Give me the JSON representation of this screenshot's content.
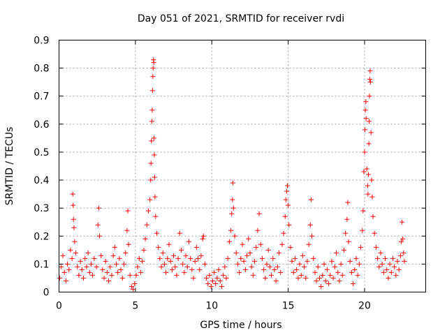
{
  "chart_data": {
    "type": "scatter",
    "title": "Day 051 of 2021, SRMTID for receiver rvdi",
    "xlabel": "GPS time / hours",
    "ylabel": "SRMTID / TECUs",
    "xlim": [
      0,
      24
    ],
    "ylim": [
      0,
      0.9
    ],
    "xticks": [
      0,
      5,
      10,
      15,
      20
    ],
    "xtick_labels": [
      "0",
      "5",
      "10",
      "15",
      "20"
    ],
    "yticks": [
      0,
      0.1,
      0.2,
      0.3,
      0.4,
      0.5,
      0.6,
      0.7,
      0.8,
      0.9
    ],
    "ytick_labels": [
      "0",
      "0.1",
      "0.2",
      "0.3",
      "0.4",
      "0.5",
      "0.6",
      "0.7",
      "0.8",
      "0.9"
    ],
    "grid": true,
    "marker": "+",
    "color": "#ff0000",
    "series": [
      {
        "name": "SRMTID",
        "points": [
          [
            0.05,
            0.05
          ],
          [
            0.15,
            0.09
          ],
          [
            0.25,
            0.13
          ],
          [
            0.35,
            0.07
          ],
          [
            0.45,
            0.04
          ],
          [
            0.55,
            0.1
          ],
          [
            0.65,
            0.08
          ],
          [
            0.75,
            0.15
          ],
          [
            0.85,
            0.12
          ],
          [
            0.9,
            0.35
          ],
          [
            0.92,
            0.31
          ],
          [
            0.95,
            0.26
          ],
          [
            0.98,
            0.23
          ],
          [
            1.02,
            0.18
          ],
          [
            1.1,
            0.14
          ],
          [
            1.2,
            0.09
          ],
          [
            1.3,
            0.06
          ],
          [
            1.4,
            0.11
          ],
          [
            1.5,
            0.08
          ],
          [
            1.6,
            0.05
          ],
          [
            1.7,
            0.12
          ],
          [
            1.8,
            0.09
          ],
          [
            1.9,
            0.14
          ],
          [
            2.0,
            0.07
          ],
          [
            2.1,
            0.1
          ],
          [
            2.2,
            0.06
          ],
          [
            2.3,
            0.12
          ],
          [
            2.45,
            0.09
          ],
          [
            2.55,
            0.24
          ],
          [
            2.6,
            0.3
          ],
          [
            2.65,
            0.2
          ],
          [
            2.75,
            0.13
          ],
          [
            2.85,
            0.08
          ],
          [
            2.95,
            0.05
          ],
          [
            3.05,
            0.11
          ],
          [
            3.15,
            0.07
          ],
          [
            3.25,
            0.04
          ],
          [
            3.35,
            0.09
          ],
          [
            3.45,
            0.06
          ],
          [
            3.55,
            0.13
          ],
          [
            3.65,
            0.16
          ],
          [
            3.75,
            0.1
          ],
          [
            3.85,
            0.07
          ],
          [
            3.95,
            0.12
          ],
          [
            4.05,
            0.08
          ],
          [
            4.15,
            0.05
          ],
          [
            4.25,
            0.1
          ],
          [
            4.35,
            0.14
          ],
          [
            4.45,
            0.22
          ],
          [
            4.5,
            0.29
          ],
          [
            4.55,
            0.17
          ],
          [
            4.65,
            0.06
          ],
          [
            4.75,
            0.02
          ],
          [
            4.85,
            0.01
          ],
          [
            4.95,
            0.03
          ],
          [
            5.05,
            0.06
          ],
          [
            5.15,
            0.09
          ],
          [
            5.25,
            0.12
          ],
          [
            5.35,
            0.07
          ],
          [
            5.45,
            0.11
          ],
          [
            5.55,
            0.15
          ],
          [
            5.65,
            0.19
          ],
          [
            5.75,
            0.24
          ],
          [
            5.85,
            0.29
          ],
          [
            5.95,
            0.33
          ],
          [
            6.0,
            0.4
          ],
          [
            6.02,
            0.46
          ],
          [
            6.05,
            0.54
          ],
          [
            6.08,
            0.61
          ],
          [
            6.1,
            0.65
          ],
          [
            6.12,
            0.72
          ],
          [
            6.14,
            0.77
          ],
          [
            6.16,
            0.8
          ],
          [
            6.18,
            0.83
          ],
          [
            6.2,
            0.82
          ],
          [
            6.22,
            0.55
          ],
          [
            6.24,
            0.49
          ],
          [
            6.26,
            0.41
          ],
          [
            6.28,
            0.34
          ],
          [
            6.32,
            0.27
          ],
          [
            6.4,
            0.21
          ],
          [
            6.5,
            0.16
          ],
          [
            6.6,
            0.12
          ],
          [
            6.7,
            0.09
          ],
          [
            6.8,
            0.14
          ],
          [
            6.9,
            0.1
          ],
          [
            7.0,
            0.07
          ],
          [
            7.1,
            0.12
          ],
          [
            7.2,
            0.17
          ],
          [
            7.3,
            0.11
          ],
          [
            7.4,
            0.08
          ],
          [
            7.5,
            0.13
          ],
          [
            7.6,
            0.09
          ],
          [
            7.7,
            0.06
          ],
          [
            7.8,
            0.12
          ],
          [
            7.9,
            0.21
          ],
          [
            8.0,
            0.15
          ],
          [
            8.1,
            0.1
          ],
          [
            8.2,
            0.07
          ],
          [
            8.3,
            0.13
          ],
          [
            8.4,
            0.09
          ],
          [
            8.5,
            0.18
          ],
          [
            8.6,
            0.12
          ],
          [
            8.7,
            0.08
          ],
          [
            8.8,
            0.05
          ],
          [
            8.9,
            0.11
          ],
          [
            9.0,
            0.16
          ],
          [
            9.1,
            0.12
          ],
          [
            9.2,
            0.08
          ],
          [
            9.3,
            0.13
          ],
          [
            9.4,
            0.19
          ],
          [
            9.45,
            0.2
          ],
          [
            9.55,
            0.1
          ],
          [
            9.65,
            0.05
          ],
          [
            9.75,
            0.03
          ],
          [
            9.85,
            0.06
          ],
          [
            9.95,
            0.02
          ],
          [
            10.05,
            0.04
          ],
          [
            10.15,
            0.07
          ],
          [
            10.25,
            0.03
          ],
          [
            10.35,
            0.05
          ],
          [
            10.45,
            0.08
          ],
          [
            10.55,
            0.04
          ],
          [
            10.65,
            0.02
          ],
          [
            10.75,
            0.06
          ],
          [
            10.85,
            0.09
          ],
          [
            10.95,
            0.05
          ],
          [
            11.05,
            0.12
          ],
          [
            11.15,
            0.18
          ],
          [
            11.25,
            0.22
          ],
          [
            11.3,
            0.28
          ],
          [
            11.35,
            0.33
          ],
          [
            11.38,
            0.39
          ],
          [
            11.42,
            0.3
          ],
          [
            11.5,
            0.2
          ],
          [
            11.6,
            0.14
          ],
          [
            11.7,
            0.1
          ],
          [
            11.8,
            0.07
          ],
          [
            11.9,
            0.12
          ],
          [
            12.0,
            0.17
          ],
          [
            12.1,
            0.11
          ],
          [
            12.2,
            0.08
          ],
          [
            12.3,
            0.13
          ],
          [
            12.4,
            0.19
          ],
          [
            12.5,
            0.14
          ],
          [
            12.6,
            0.09
          ],
          [
            12.7,
            0.06
          ],
          [
            12.8,
            0.11
          ],
          [
            12.9,
            0.16
          ],
          [
            13.0,
            0.22
          ],
          [
            13.1,
            0.28
          ],
          [
            13.2,
            0.17
          ],
          [
            13.3,
            0.12
          ],
          [
            13.4,
            0.08
          ],
          [
            13.5,
            0.05
          ],
          [
            13.6,
            0.1
          ],
          [
            13.7,
            0.15
          ],
          [
            13.8,
            0.09
          ],
          [
            13.9,
            0.06
          ],
          [
            14.0,
            0.12
          ],
          [
            14.1,
            0.08
          ],
          [
            14.2,
            0.04
          ],
          [
            14.3,
            0.09
          ],
          [
            14.4,
            0.14
          ],
          [
            14.5,
            0.07
          ],
          [
            14.6,
            0.17
          ],
          [
            14.7,
            0.21
          ],
          [
            14.8,
            0.27
          ],
          [
            14.85,
            0.33
          ],
          [
            14.9,
            0.36
          ],
          [
            14.95,
            0.38
          ],
          [
            15.0,
            0.31
          ],
          [
            15.05,
            0.24
          ],
          [
            15.15,
            0.16
          ],
          [
            15.25,
            0.11
          ],
          [
            15.35,
            0.07
          ],
          [
            15.45,
            0.12
          ],
          [
            15.55,
            0.08
          ],
          [
            15.65,
            0.05
          ],
          [
            15.75,
            0.1
          ],
          [
            15.85,
            0.06
          ],
          [
            15.95,
            0.13
          ],
          [
            16.05,
            0.09
          ],
          [
            16.15,
            0.05
          ],
          [
            16.25,
            0.11
          ],
          [
            16.35,
            0.17
          ],
          [
            16.45,
            0.24
          ],
          [
            16.5,
            0.33
          ],
          [
            16.55,
            0.2
          ],
          [
            16.65,
            0.12
          ],
          [
            16.75,
            0.07
          ],
          [
            16.85,
            0.04
          ],
          [
            16.95,
            0.09
          ],
          [
            17.05,
            0.05
          ],
          [
            17.15,
            0.02
          ],
          [
            17.25,
            0.06
          ],
          [
            17.35,
            0.1
          ],
          [
            17.45,
            0.04
          ],
          [
            17.55,
            0.08
          ],
          [
            17.65,
            0.03
          ],
          [
            17.75,
            0.06
          ],
          [
            17.85,
            0.11
          ],
          [
            17.95,
            0.05
          ],
          [
            18.05,
            0.09
          ],
          [
            18.15,
            0.14
          ],
          [
            18.25,
            0.07
          ],
          [
            18.35,
            0.04
          ],
          [
            18.45,
            0.1
          ],
          [
            18.55,
            0.06
          ],
          [
            18.65,
            0.15
          ],
          [
            18.75,
            0.21
          ],
          [
            18.85,
            0.26
          ],
          [
            18.9,
            0.32
          ],
          [
            18.95,
            0.18
          ],
          [
            19.05,
            0.11
          ],
          [
            19.15,
            0.07
          ],
          [
            19.25,
            0.03
          ],
          [
            19.35,
            0.08
          ],
          [
            19.45,
            0.12
          ],
          [
            19.55,
            0.06
          ],
          [
            19.65,
            0.1
          ],
          [
            19.75,
            0.16
          ],
          [
            19.85,
            0.22
          ],
          [
            19.9,
            0.29
          ],
          [
            19.95,
            0.43
          ],
          [
            20.0,
            0.5
          ],
          [
            20.02,
            0.58
          ],
          [
            20.05,
            0.65
          ],
          [
            20.08,
            0.68
          ],
          [
            20.1,
            0.62
          ],
          [
            20.15,
            0.44
          ],
          [
            20.2,
            0.38
          ],
          [
            20.22,
            0.35
          ],
          [
            20.25,
            0.42
          ],
          [
            20.28,
            0.53
          ],
          [
            20.3,
            0.61
          ],
          [
            20.32,
            0.7
          ],
          [
            20.34,
            0.76
          ],
          [
            20.36,
            0.79
          ],
          [
            20.38,
            0.75
          ],
          [
            20.42,
            0.57
          ],
          [
            20.46,
            0.4
          ],
          [
            20.5,
            0.34
          ],
          [
            20.55,
            0.27
          ],
          [
            20.65,
            0.21
          ],
          [
            20.75,
            0.16
          ],
          [
            20.85,
            0.12
          ],
          [
            20.95,
            0.09
          ],
          [
            21.05,
            0.14
          ],
          [
            21.15,
            0.1
          ],
          [
            21.25,
            0.07
          ],
          [
            21.35,
            0.12
          ],
          [
            21.45,
            0.08
          ],
          [
            21.55,
            0.05
          ],
          [
            21.65,
            0.1
          ],
          [
            21.75,
            0.07
          ],
          [
            21.85,
            0.12
          ],
          [
            21.95,
            0.09
          ],
          [
            22.05,
            0.06
          ],
          [
            22.15,
            0.11
          ],
          [
            22.25,
            0.08
          ],
          [
            22.35,
            0.13
          ],
          [
            22.4,
            0.18
          ],
          [
            22.45,
            0.25
          ],
          [
            22.5,
            0.19
          ],
          [
            22.55,
            0.14
          ],
          [
            22.6,
            0.11
          ]
        ]
      }
    ]
  }
}
